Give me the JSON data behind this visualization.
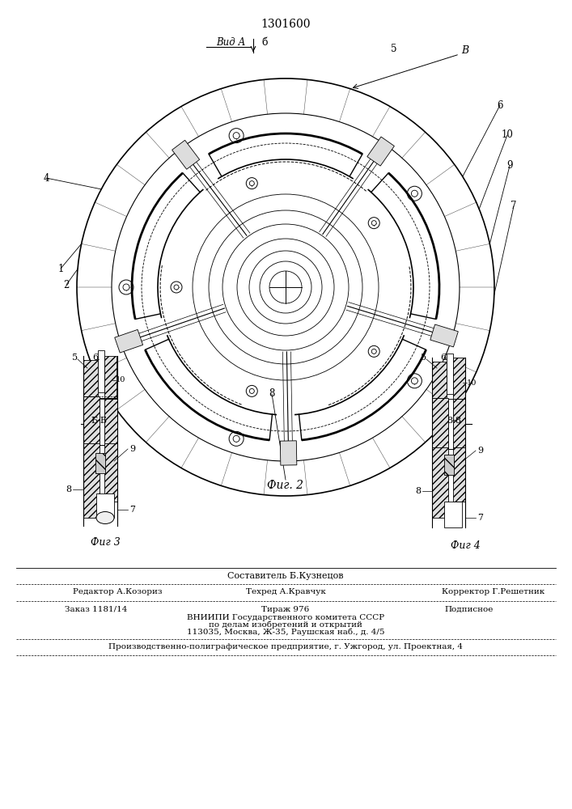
{
  "patent_number": "1301600",
  "background_color": "#ffffff",
  "fig2_caption": "Фиг. 2",
  "fig3_caption": "Фиг 3",
  "fig4_caption": "Фиг 4",
  "view_label": "Вид А",
  "section_bb_label": "Б-Б",
  "section_88_label": "8-8",
  "view_B_label": "В",
  "footer_composer": "Составитель Б.Кузнецов",
  "footer_editor": "Редактор А.Козориз",
  "footer_techred": "Техред А.Кравчук",
  "footer_corrector": "Корректор Г.Решетник",
  "footer_order": "Заказ 1181/14",
  "footer_tirage": "Тираж 976",
  "footer_podpisnoe": "Подписное",
  "footer_vniipki": "ВНИИПИ Государственного комитета СССР",
  "footer_po_delam": "по делам изобретений и открытий",
  "footer_address": "113035, Москва, Ж-35, Раушская наб., д. 4/5",
  "footer_uzgorod": "Производственно-полиграфическое предприятие, г. Ужгород, ул. Проектная, 4"
}
